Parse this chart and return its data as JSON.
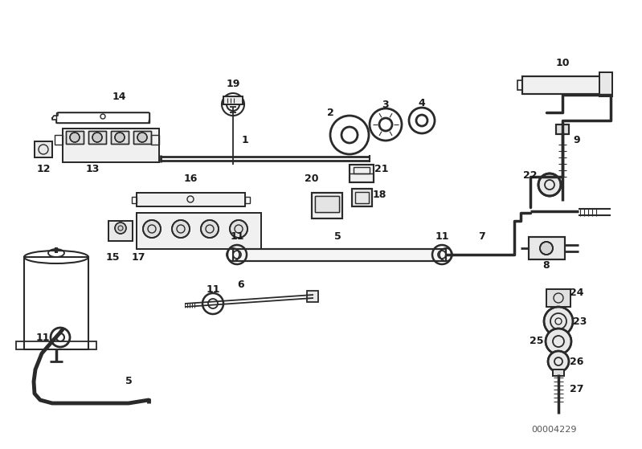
{
  "bg_color": "#ffffff",
  "line_color": "#2a2a2a",
  "text_color": "#1a1a1a",
  "figsize": [
    7.99,
    5.59
  ],
  "dpi": 100,
  "catalog_number": "00004229"
}
